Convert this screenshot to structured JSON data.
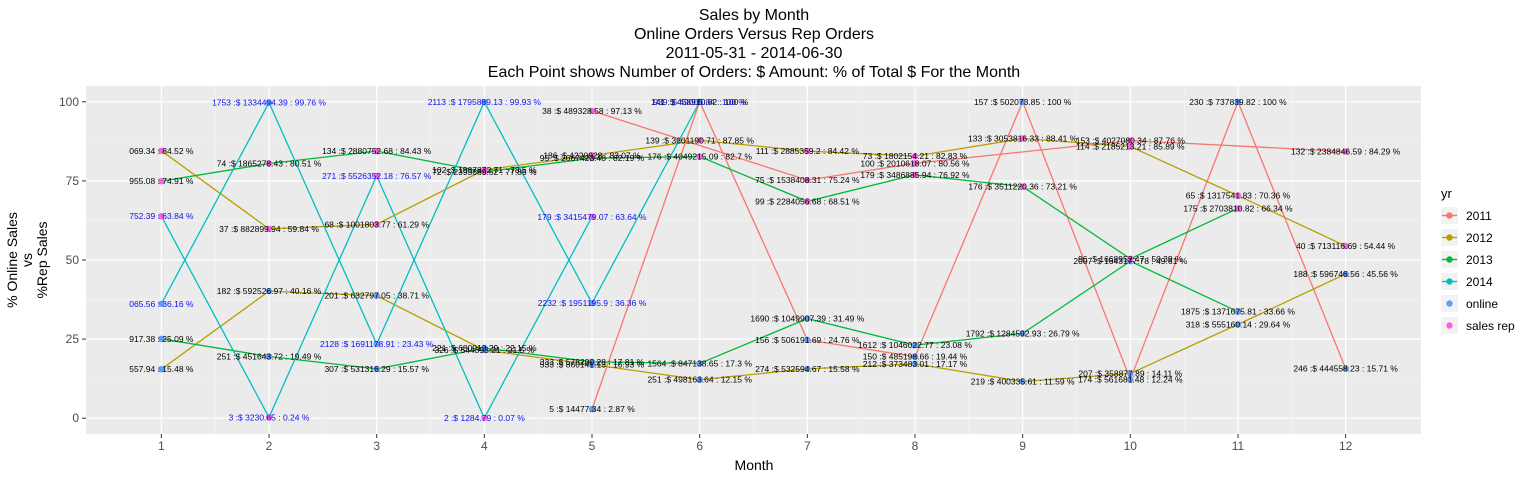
{
  "chart_data": {
    "type": "line",
    "title_lines": [
      "Sales by Month",
      "Online Orders Versus Rep Orders",
      "2011-05-31  -  2014-06-30",
      "Each Point shows Number of Orders: $ Amount: % of Total $ For the Month"
    ],
    "xlabel": "Month",
    "ylabel_lines": [
      "% Online Sales",
      "vs",
      "%Rep Sales"
    ],
    "x_ticks": [
      "1",
      "2",
      "3",
      "4",
      "5",
      "6",
      "7",
      "8",
      "9",
      "10",
      "11",
      "12"
    ],
    "y_ticks": [
      0,
      25,
      50,
      75,
      100
    ],
    "xlim": [
      0.3,
      12.7
    ],
    "ylim": [
      -5,
      105
    ],
    "legend": {
      "title": "yr",
      "position": "right",
      "items": [
        {
          "label": "2011",
          "color": "#F8766D",
          "kind": "line"
        },
        {
          "label": "2012",
          "color": "#B79F00",
          "kind": "line"
        },
        {
          "label": "2013",
          "color": "#00BA38",
          "kind": "line"
        },
        {
          "label": "2014",
          "color": "#00BFC4",
          "kind": "line"
        },
        {
          "label": "online",
          "color": "#619CFF",
          "kind": "point"
        },
        {
          "label": "sales rep",
          "color": "#F564E3",
          "kind": "point"
        }
      ]
    },
    "series": [
      {
        "name": "2011 online",
        "year": "2011",
        "type": "online",
        "color": "#F8766D",
        "points": [
          {
            "x": 5,
            "y": 2.87,
            "label": "5 :$ 14477.34 : 2.87 %"
          },
          {
            "x": 6,
            "y": 100,
            "label": "141 :$ 458910.82 : 100 %"
          },
          {
            "x": 7,
            "y": 24.76,
            "label": "156 :$ 506191.69 : 24.76 %"
          },
          {
            "x": 8,
            "y": 19.44,
            "label": "150 :$ 485198.66 : 19.44 %"
          },
          {
            "x": 9,
            "y": 100,
            "label": "157 :$ 502073.85 : 100 %"
          },
          {
            "x": 10,
            "y": 12.24,
            "label": "174 :$ 561681.48 : 12.24 %"
          },
          {
            "x": 11,
            "y": 100,
            "label": "230 :$ 737839.82 : 100 %"
          },
          {
            "x": 12,
            "y": 15.71,
            "label": "246 :$ 444558.23 : 15.71 %"
          }
        ]
      },
      {
        "name": "2011 sales rep",
        "year": "2011",
        "type": "rep",
        "color": "#F8766D",
        "points": [
          {
            "x": 5,
            "y": 97.13,
            "label": "38 :$ 489328.58 : 97.13 %"
          },
          {
            "x": 7,
            "y": 75.24,
            "label": "75 :$ 1538408.31 : 75.24 %"
          },
          {
            "x": 8,
            "y": 80.56,
            "label": "100 :$ 2010618.07 : 80.56 %"
          },
          {
            "x": 10,
            "y": 87.76,
            "label": "153 :$ 4027080.34 : 87.76 %"
          },
          {
            "x": 12,
            "y": 84.29,
            "label": "132 :$ 2384846.59 : 84.29 %"
          }
        ]
      },
      {
        "name": "2012 online",
        "year": "2012",
        "type": "online",
        "color": "#B79F00",
        "points": [
          {
            "x": 1,
            "y": 15.48,
            "label": "557.94 : 15.48 %"
          },
          {
            "x": 2,
            "y": 40.16,
            "label": "182 :$ 592526.97 : 40.16 %"
          },
          {
            "x": 3,
            "y": 38.71,
            "label": "201 :$ 632797.05 : 38.71 %"
          },
          {
            "x": 4,
            "y": 21.5,
            "label": "326 :$ 544393.21 : 21.5 %"
          },
          {
            "x": 5,
            "y": 16.93,
            "label": "533 :$ 860141.13 : 16.93 %"
          },
          {
            "x": 6,
            "y": 12.15,
            "label": "251 :$ 498163.64 : 12.15 %"
          },
          {
            "x": 7,
            "y": 15.58,
            "label": "274 :$ 532594.67 : 15.58 %"
          },
          {
            "x": 8,
            "y": 17.17,
            "label": "212 :$ 373483.01 : 17.17 %"
          },
          {
            "x": 9,
            "y": 11.59,
            "label": "219 :$ 400335.61 : 11.59 %"
          },
          {
            "x": 10,
            "y": 14.11,
            "label": "207 :$ 358877.89 : 14.11 %"
          },
          {
            "x": 11,
            "y": 29.64,
            "label": "318 :$ 555160.14 : 29.64 %"
          },
          {
            "x": 12,
            "y": 45.56,
            "label": "188 :$ 596746.56 : 45.56 %"
          }
        ]
      },
      {
        "name": "2012 sales rep",
        "year": "2012",
        "type": "rep",
        "color": "#B79F00",
        "points": [
          {
            "x": 1,
            "y": 84.52,
            "label": "069.34 : 84.52 %"
          },
          {
            "x": 2,
            "y": 59.84,
            "label": "37 :$ 882899.94 : 59.84 %"
          },
          {
            "x": 3,
            "y": 61.29,
            "label": "68 :$ 1001803.77 : 61.29 %"
          },
          {
            "x": 4,
            "y": 78.5,
            "label": "102 :$ 1987872.71 : 78.5 %"
          },
          {
            "x": 5,
            "y": 83.07,
            "label": "186 :$ 4220928 : 83.07 %"
          },
          {
            "x": 6,
            "y": 87.85,
            "label": "139 :$ 3601190.71 : 87.85 %"
          },
          {
            "x": 7,
            "y": 84.42,
            "label": "111 :$ 2885359.2 : 84.42 %"
          },
          {
            "x": 8,
            "y": 82.83,
            "label": "73 :$ 1802154.21 : 82.83 %"
          },
          {
            "x": 9,
            "y": 88.41,
            "label": "133 :$ 3053816.33 : 88.41 %"
          },
          {
            "x": 10,
            "y": 85.89,
            "label": "114 :$ 2185213.21 : 85.89 %"
          },
          {
            "x": 11,
            "y": 70.36,
            "label": "65 :$ 1317541.83 : 70.36 %"
          },
          {
            "x": 12,
            "y": 54.44,
            "label": "40 :$ 713116.69 : 54.44 %"
          }
        ]
      },
      {
        "name": "2013 online",
        "year": "2013",
        "type": "online",
        "color": "#00BA38",
        "points": [
          {
            "x": 1,
            "y": 25.09,
            "label": "917.38 : 25.09 %"
          },
          {
            "x": 2,
            "y": 19.49,
            "label": "251 :$ 451643.72 : 19.49 %"
          },
          {
            "x": 3,
            "y": 15.57,
            "label": "307 :$ 531316.29 : 15.57 %"
          },
          {
            "x": 4,
            "y": 22.15,
            "label": "221 :$ 680913.29 : 22.15 %"
          },
          {
            "x": 5,
            "y": 17.81,
            "label": "333 :$ 578200.28 : 17.81 %"
          },
          {
            "x": 6,
            "y": 17.3,
            "label": "1564 :$ 847138.65 : 17.3 %"
          },
          {
            "x": 7,
            "y": 31.49,
            "label": "1690 :$ 1049907.39 : 31.49 %"
          },
          {
            "x": 8,
            "y": 23.08,
            "label": "1612 :$ 1046022.77 : 23.08 %"
          },
          {
            "x": 9,
            "y": 26.79,
            "label": "1792 :$ 1284592.93 : 26.79 %"
          },
          {
            "x": 10,
            "y": 49.61,
            "label": "2007 :$ 1643177.78 : 49.61 %"
          },
          {
            "x": 11,
            "y": 33.66,
            "label": "1875 :$ 1371675.81 : 33.66 %"
          }
        ]
      },
      {
        "name": "2013 sales rep",
        "year": "2013",
        "type": "rep",
        "color": "#00BA38",
        "points": [
          {
            "x": 1,
            "y": 74.91,
            "label": "955.08 : 74.91 %"
          },
          {
            "x": 2,
            "y": 80.51,
            "label": "74 :$ 1865278.43 : 80.51 %"
          },
          {
            "x": 3,
            "y": 84.43,
            "label": "134 :$ 2880752.68 : 84.43 %"
          },
          {
            "x": 4,
            "y": 77.85,
            "label": "72 :$ 2393689.52 : 77.85 %"
          },
          {
            "x": 5,
            "y": 82.19,
            "label": "95 :$ 2667423.48 : 82.19 %"
          },
          {
            "x": 6,
            "y": 82.7,
            "label": "176 :$ 4049215.09 : 82.7 %"
          },
          {
            "x": 7,
            "y": 68.51,
            "label": "99 :$ 2284056.68 : 68.51 %"
          },
          {
            "x": 8,
            "y": 76.92,
            "label": "179 :$ 3486885.94 : 76.92 %"
          },
          {
            "x": 9,
            "y": 73.21,
            "label": "176 :$ 3511220.36 : 73.21 %"
          },
          {
            "x": 10,
            "y": 50.39,
            "label": "96 :$ 1668952.47 : 50.39 %"
          },
          {
            "x": 11,
            "y": 66.34,
            "label": "175 :$ 2703810.82 : 66.34 %"
          }
        ]
      },
      {
        "name": "2014 online",
        "year": "2014",
        "type": "online",
        "color": "#00BFC4",
        "points": [
          {
            "x": 1,
            "y": 36.16,
            "label": "065.56 : 36.16 %"
          },
          {
            "x": 2,
            "y": 99.76,
            "label": "1753 :$ 1334494.39 : 99.76 %"
          },
          {
            "x": 3,
            "y": 23.43,
            "label": "2128 :$ 1691178.91 : 23.43 %"
          },
          {
            "x": 4,
            "y": 99.93,
            "label": "2113 :$ 1795889.13 : 99.93 %"
          },
          {
            "x": 5,
            "y": 36.36,
            "label": "2232 :$ 1951195.9 : 36.36 %"
          },
          {
            "x": 6,
            "y": 100,
            "label": "939 :$ 49005.84 : 100 %"
          }
        ]
      },
      {
        "name": "2014 sales rep",
        "year": "2014",
        "type": "rep",
        "color": "#00BFC4",
        "points": [
          {
            "x": 1,
            "y": 63.84,
            "label": "752.39 : 63.84 %"
          },
          {
            "x": 2,
            "y": 0.24,
            "label": "3 :$ 3230.65 : 0.24 %"
          },
          {
            "x": 3,
            "y": 76.57,
            "label": "271 :$ 5526352.18 : 76.57 %"
          },
          {
            "x": 4,
            "y": 0.07,
            "label": "2 :$ 1284.79 : 0.07 %"
          },
          {
            "x": 5,
            "y": 63.64,
            "label": "179 :$ 3415479.07 : 63.64 %"
          }
        ]
      }
    ]
  }
}
